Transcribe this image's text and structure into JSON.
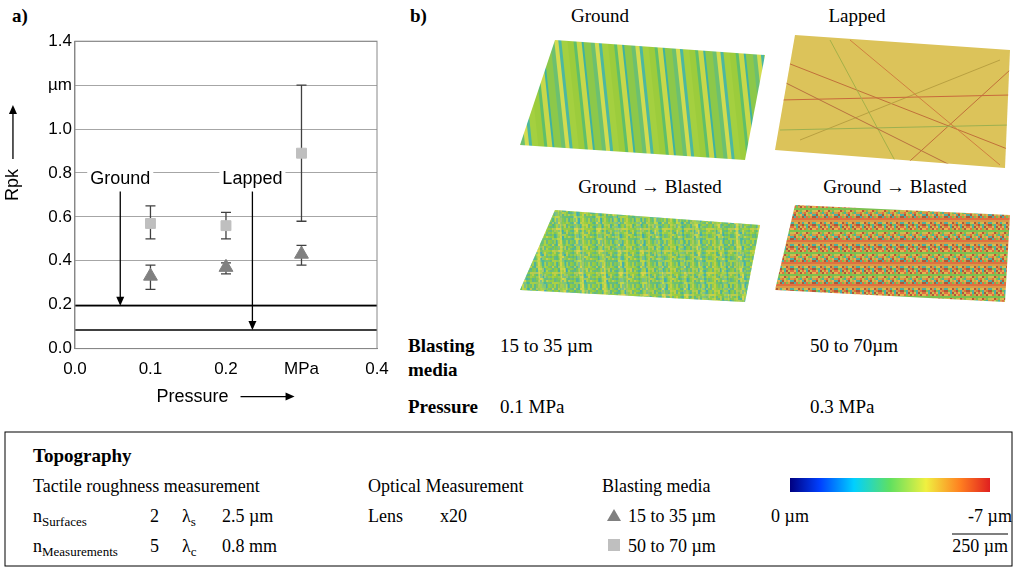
{
  "chart_data": {
    "type": "scatter",
    "panel_label": "a)",
    "x_label": "Pressure",
    "y_label": "Rpk",
    "x": [
      0.1,
      0.2,
      0.3
    ],
    "xlim": [
      0,
      0.4
    ],
    "xticks": [
      {
        "value": 0,
        "label": "0.0"
      },
      0.1,
      0.2,
      {
        "value": 0.3,
        "label": "MPa"
      },
      0.4
    ],
    "ylim": [
      0,
      1.4
    ],
    "yticks": [
      {
        "value": 0,
        "label": "0.0"
      },
      0.2,
      0.4,
      0.6,
      0.8,
      {
        "value": 1,
        "label": "1.0"
      },
      {
        "value": 1.2,
        "label": "µm"
      },
      1.4
    ],
    "grid": true,
    "series": [
      {
        "name": "15 to 35 µm",
        "color": "#808080",
        "marker": "triangle",
        "values": [
          0.33,
          0.37,
          0.43
        ],
        "error_low": [
          0.27,
          0.34,
          0.38
        ],
        "error_high": [
          0.38,
          0.39,
          0.47
        ]
      },
      {
        "name": "50 to 70 µm",
        "color": "#bfbfbf",
        "marker": "square",
        "values": [
          0.57,
          0.56,
          0.89
        ],
        "error_low": [
          0.5,
          0.5,
          0.58
        ],
        "error_high": [
          0.65,
          0.62,
          1.2
        ]
      }
    ],
    "annotations": [
      {
        "text": "Ground",
        "y": 0.195
      },
      {
        "text": "Lapped",
        "y": 0.085
      }
    ]
  },
  "panel_b": {
    "panel_label": "b)",
    "image_titles": [
      "Ground",
      "Lapped",
      "Ground → Blasted",
      "Ground → Blasted"
    ],
    "conditions": [
      {
        "label": "Blasting media",
        "values": [
          "15 to 35 µm",
          "50 to 70µm"
        ]
      },
      {
        "label": "Pressure",
        "values": [
          "0.1 MPa",
          "0.3 MPa"
        ]
      }
    ]
  },
  "info_box": {
    "title": "Topography",
    "tactile": {
      "title": "Tactile roughness measurement",
      "rows": [
        {
          "n": "n",
          "n_subscript": "Surfaces",
          "count": 2,
          "lambda": "λ",
          "lambda_subscript": "s",
          "lambda_value": "2.5 µm"
        },
        {
          "n": "n",
          "n_subscript": "Measurements",
          "count": 5,
          "lambda": "λ",
          "lambda_subscript": "c",
          "lambda_value": "0.8 mm"
        }
      ]
    },
    "optical": {
      "title": "Optical Measurement",
      "lens_label": "Lens",
      "lens": "x20"
    },
    "blasting_media_title": "Blasting media",
    "color_bar": {
      "range": [
        0,
        -7
      ],
      "ticks": [
        {
          "value": 0,
          "label": "0 µm"
        },
        {
          "value": -7,
          "label": "-7 µm"
        }
      ]
    },
    "scale_bar": "250 µm"
  }
}
